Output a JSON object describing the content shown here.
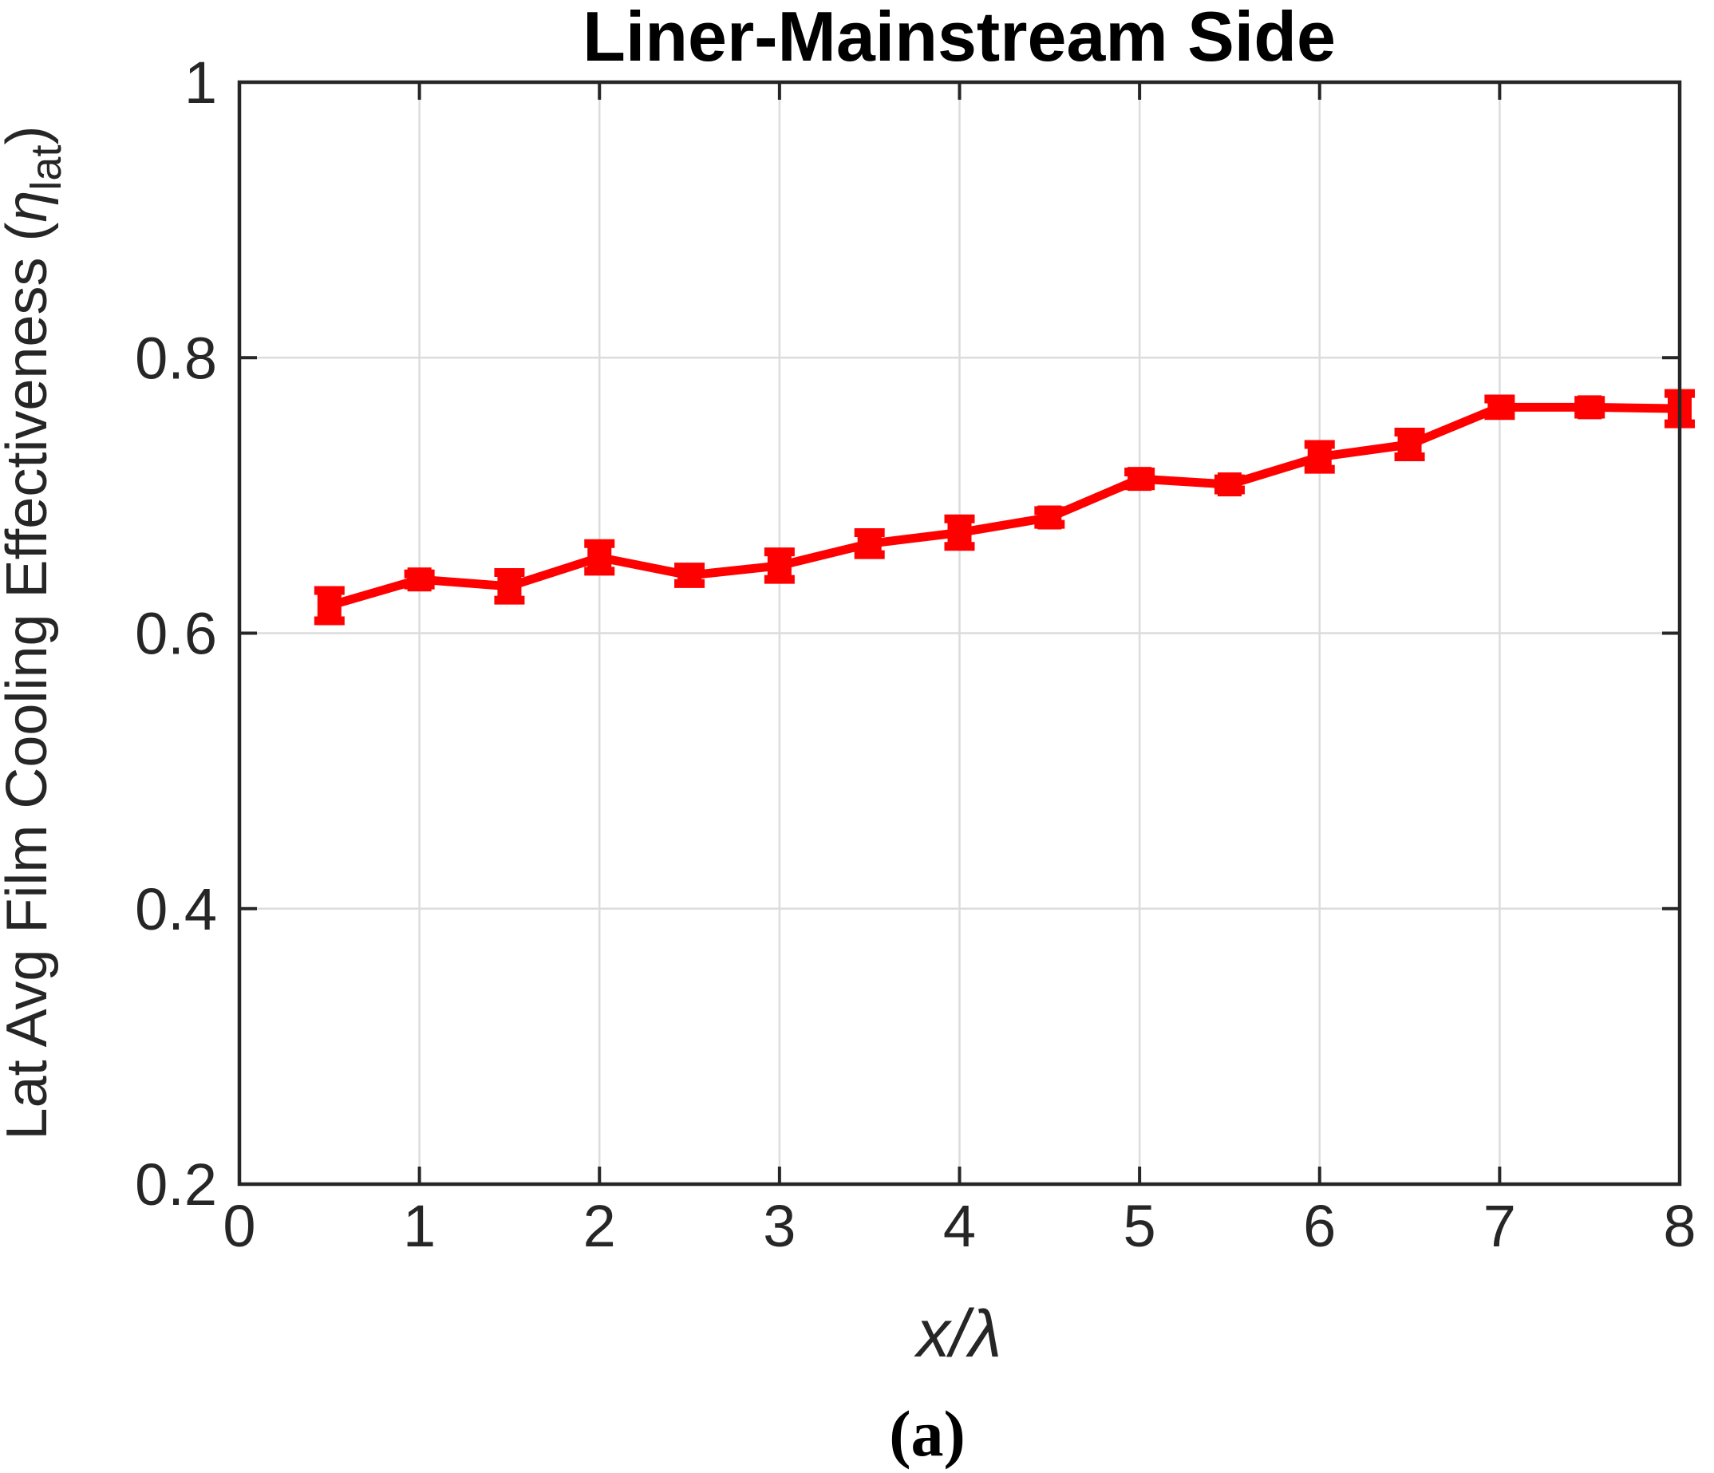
{
  "figure": {
    "title": "Liner-Mainstream Side",
    "caption": "(a)",
    "xlabel": {
      "prefix": "x/",
      "symbol": "λ"
    },
    "ylabel": {
      "prefix": "Lat Avg Film Cooling Effectiveness (",
      "symbol": "η",
      "subscript": "lat",
      "suffix": ")"
    }
  },
  "chart_data": {
    "type": "line",
    "title": "Liner-Mainstream Side",
    "xlabel": "x/λ",
    "ylabel": "Lat Avg Film Cooling Effectiveness (η_lat)",
    "caption": "(a)",
    "x": [
      0.5,
      1,
      1.5,
      2,
      2.5,
      3,
      3.5,
      4,
      4.5,
      5,
      5.5,
      6,
      6.5,
      7,
      7.5,
      8
    ],
    "series": [
      {
        "name": "lateral-average film cooling effectiveness",
        "values": [
          0.62,
          0.639,
          0.634,
          0.655,
          0.642,
          0.649,
          0.665,
          0.673,
          0.684,
          0.712,
          0.708,
          0.728,
          0.737,
          0.764,
          0.764,
          0.763
        ],
        "errors": [
          0.011,
          0.004,
          0.01,
          0.01,
          0.006,
          0.01,
          0.008,
          0.01,
          0.005,
          0.005,
          0.004,
          0.009,
          0.009,
          0.006,
          0.005,
          0.011
        ]
      }
    ],
    "xlim": [
      0,
      8
    ],
    "ylim": [
      0.2,
      1.0
    ],
    "xticks": [
      0,
      1,
      2,
      3,
      4,
      5,
      6,
      7,
      8
    ],
    "xtick_labels": [
      "0",
      "1",
      "2",
      "3",
      "4",
      "5",
      "6",
      "7",
      "8"
    ],
    "yticks": [
      0.2,
      0.4,
      0.6,
      0.8,
      1.0
    ],
    "ytick_labels": [
      "0.2",
      "0.4",
      "0.6",
      "0.8",
      "1"
    ],
    "grid": true,
    "legend": "none",
    "line_color": "#ff0000",
    "grid_color": "#dcdcdc",
    "axis_color": "#262626",
    "marker": "square"
  }
}
